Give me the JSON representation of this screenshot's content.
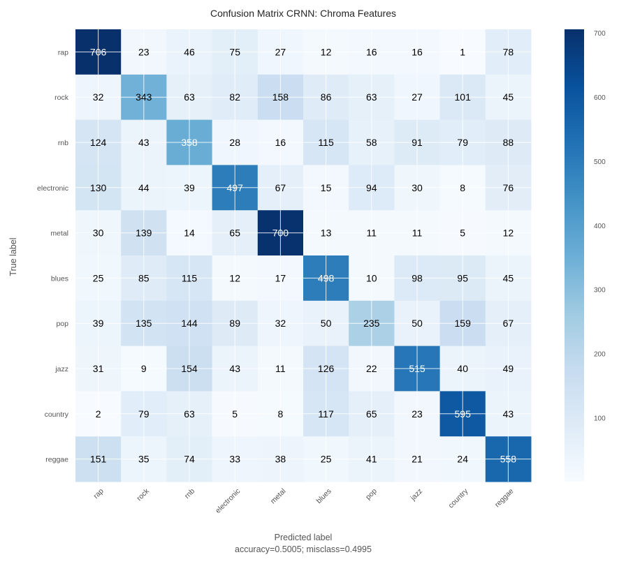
{
  "chart_data": {
    "type": "heatmap",
    "title": "Confusion Matrix CRNN: Chroma Features",
    "xlabel": "Predicted label",
    "xlabel_sub": "accuracy=0.5005; misclass=0.4995",
    "ylabel": "True label",
    "row_labels": [
      "rap",
      "rock",
      "rnb",
      "electronic",
      "metal",
      "blues",
      "pop",
      "jazz",
      "country",
      "reggae"
    ],
    "col_labels": [
      "rap",
      "rock",
      "rnb",
      "electronic",
      "metal",
      "blues",
      "pop",
      "jazz",
      "country",
      "reggae"
    ],
    "values": [
      [
        706,
        23,
        46,
        75,
        27,
        12,
        16,
        16,
        1,
        78
      ],
      [
        32,
        343,
        63,
        82,
        158,
        86,
        63,
        27,
        101,
        45
      ],
      [
        124,
        43,
        358,
        28,
        16,
        115,
        58,
        91,
        79,
        88
      ],
      [
        130,
        44,
        39,
        497,
        67,
        15,
        94,
        30,
        8,
        76
      ],
      [
        30,
        139,
        14,
        65,
        700,
        13,
        11,
        11,
        5,
        12
      ],
      [
        25,
        85,
        115,
        12,
        17,
        498,
        10,
        98,
        95,
        45
      ],
      [
        39,
        135,
        144,
        89,
        32,
        50,
        235,
        50,
        159,
        67
      ],
      [
        31,
        9,
        154,
        43,
        11,
        126,
        22,
        515,
        40,
        49
      ],
      [
        2,
        79,
        63,
        5,
        8,
        117,
        65,
        23,
        595,
        43
      ],
      [
        151,
        35,
        74,
        33,
        38,
        25,
        41,
        21,
        24,
        558
      ]
    ],
    "colormap": "Blues",
    "vmin": 1,
    "vmax": 706,
    "colorbar_ticks": [
      100,
      200,
      300,
      400,
      500,
      600,
      700
    ],
    "grid": true,
    "text_threshold": 353
  }
}
